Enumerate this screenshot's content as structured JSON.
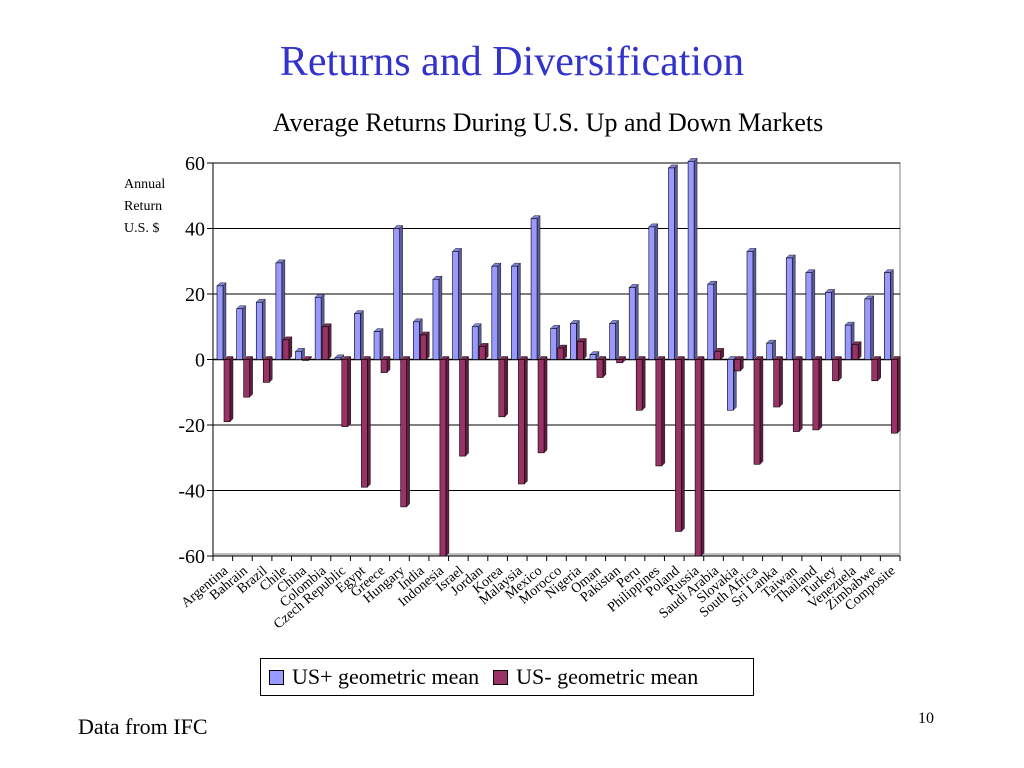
{
  "slide": {
    "title": "Returns and Diversification",
    "footer_note": "Data from IFC",
    "page_number": "10"
  },
  "chart_data": {
    "type": "bar",
    "title": "Average Returns During U.S. Up and Down Markets",
    "ylabel_lines": [
      "Annual",
      "Return",
      "U.S. $"
    ],
    "xlabel": "",
    "ylim": [
      -60,
      60
    ],
    "yticks": [
      "60",
      "40",
      "20",
      "0",
      "-20",
      "-40",
      "-60"
    ],
    "grid": true,
    "legend_position": "bottom",
    "categories": [
      "Argentina",
      "Bahrain",
      "Brazil",
      "Chile",
      "China",
      "Colombia",
      "Czech Republic",
      "Egypt",
      "Greece",
      "Hungary",
      "India",
      "Indonesia",
      "Israel",
      "Jordan",
      "Korea",
      "Malaysia",
      "Mexico",
      "Morocco",
      "Nigeria",
      "Oman",
      "Pakistan",
      "Peru",
      "Philippines",
      "Poland",
      "Russia",
      "Saudi Arabia",
      "Slovakia",
      "South Africa",
      "Sri Lanka",
      "Taiwan",
      "Thailand",
      "Turkey",
      "Venezuela",
      "Zimbabwe",
      "Composite"
    ],
    "series": [
      {
        "name": "US+ geometric mean",
        "color": "#9999ff",
        "values": [
          22.5,
          15.5,
          17.5,
          29.5,
          2.5,
          19,
          0.5,
          14,
          8.5,
          40,
          11.5,
          24.5,
          33,
          10,
          28.5,
          28.5,
          43,
          9.5,
          11,
          1.5,
          11,
          22,
          40.5,
          58.5,
          60.5,
          23,
          -15.5,
          33,
          5,
          31,
          26.5,
          20.5,
          10.5,
          18.5,
          26.5
        ]
      },
      {
        "name": "US- geometric mean",
        "color": "#993366",
        "values": [
          -19,
          -11.5,
          -7,
          6,
          0,
          10,
          -20.5,
          -39,
          -4,
          -45,
          7.5,
          -60,
          -29.5,
          4,
          -17.5,
          -38,
          -28.5,
          3.5,
          5.5,
          -5.5,
          -1,
          -15.5,
          -32.5,
          -52.5,
          -60,
          2.5,
          -3.5,
          -32,
          -14.5,
          -22,
          -21.5,
          -6.5,
          4.5,
          -6.5,
          -22.5
        ]
      }
    ]
  }
}
